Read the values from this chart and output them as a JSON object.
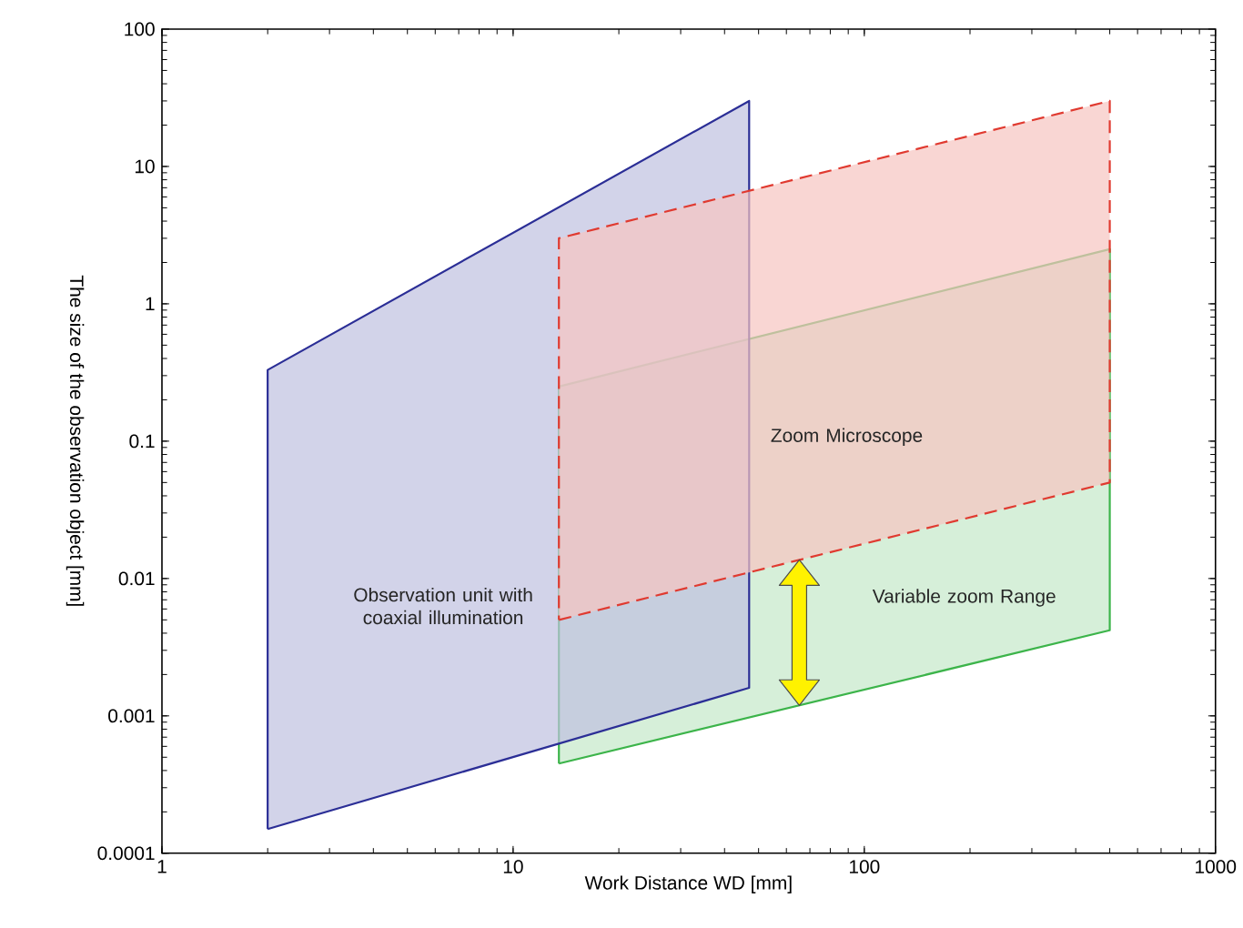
{
  "chart_data": {
    "type": "area",
    "xlabel": "Work Distance WD [mm]",
    "ylabel": "The size of the observation object [mm]",
    "log": "xy",
    "xlim": [
      1,
      1000
    ],
    "ylim": [
      0.0001,
      100
    ],
    "xticks": [
      1,
      10,
      100,
      1000
    ],
    "yticks": [
      {
        "value": 0.0001,
        "label": "0.0001"
      },
      {
        "value": 0.001,
        "label": "0.001"
      },
      {
        "value": 0.01,
        "label": "0.01"
      },
      {
        "value": 0.1,
        "label": "0.1"
      },
      1,
      10,
      100
    ],
    "series": [
      {
        "color": "#3cb44a",
        "line_style": "solid",
        "x": [
          13.5,
          500,
          500,
          13.5,
          13.5
        ],
        "values": [
          0.00045,
          0.0042,
          2.5,
          0.25,
          0.00045
        ]
      },
      {
        "color": "#2b2e96",
        "line_style": "solid",
        "x": [
          2,
          47,
          47,
          2,
          2
        ],
        "values": [
          0.00015,
          0.0016,
          30,
          0.33,
          0.00015
        ]
      },
      {
        "color": "#e03a30",
        "line_style": "dashed",
        "x": [
          13.5,
          500,
          500,
          13.5,
          13.5
        ],
        "values": [
          0.005,
          0.05,
          30,
          3,
          0.005
        ]
      }
    ],
    "annotations": [
      "Observation unit with coaxial illumination",
      "Zoom Microscope",
      "Variable zoom Range"
    ]
  }
}
